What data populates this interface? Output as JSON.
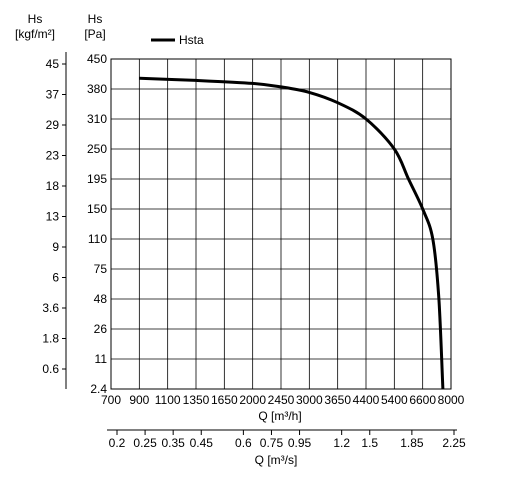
{
  "chart_data": {
    "type": "line",
    "series": [
      {
        "name": "Hsta",
        "x": [
          900,
          1350,
          2000,
          2450,
          3000,
          3650,
          4400,
          5400,
          6000,
          6600,
          7100,
          7400,
          7600
        ],
        "y": [
          405,
          400,
          393,
          385,
          372,
          348,
          310,
          250,
          195,
          150,
          110,
          48,
          2.4
        ]
      }
    ],
    "x_axis_top": {
      "label": "Q [m³/h]",
      "ticks": [
        "700",
        "900",
        "1100",
        "1350",
        "1650",
        "2000",
        "2450",
        "3000",
        "3650",
        "4400",
        "5400",
        "6600",
        "8000"
      ]
    },
    "x_axis_bottom": {
      "label": "Q [m³/s]",
      "ticks": [
        "0.2",
        "0.25",
        "0.35",
        "0.45",
        "0.6",
        "0.75",
        "0.95",
        "1.2",
        "1.5",
        "1.85",
        "2.25"
      ],
      "tick_positions": [
        0,
        1,
        2,
        3,
        4.5,
        5.5,
        6.5,
        8,
        9,
        10.5,
        12
      ]
    },
    "y_axis_right": {
      "label_line1": "Hs",
      "label_line2": "[Pa]",
      "ticks": [
        "2.4",
        "11",
        "26",
        "48",
        "75",
        "110",
        "150",
        "195",
        "250",
        "310",
        "380",
        "450"
      ]
    },
    "y_axis_left": {
      "label_line1": "Hs",
      "label_line2": "[kgf/m²]",
      "ticks": [
        "0.6",
        "1.8",
        "3.6",
        "6",
        "9",
        "13",
        "18",
        "23",
        "29",
        "37",
        "45"
      ]
    },
    "legend": {
      "label": "Hsta",
      "position": "top-left"
    },
    "grid": true
  }
}
